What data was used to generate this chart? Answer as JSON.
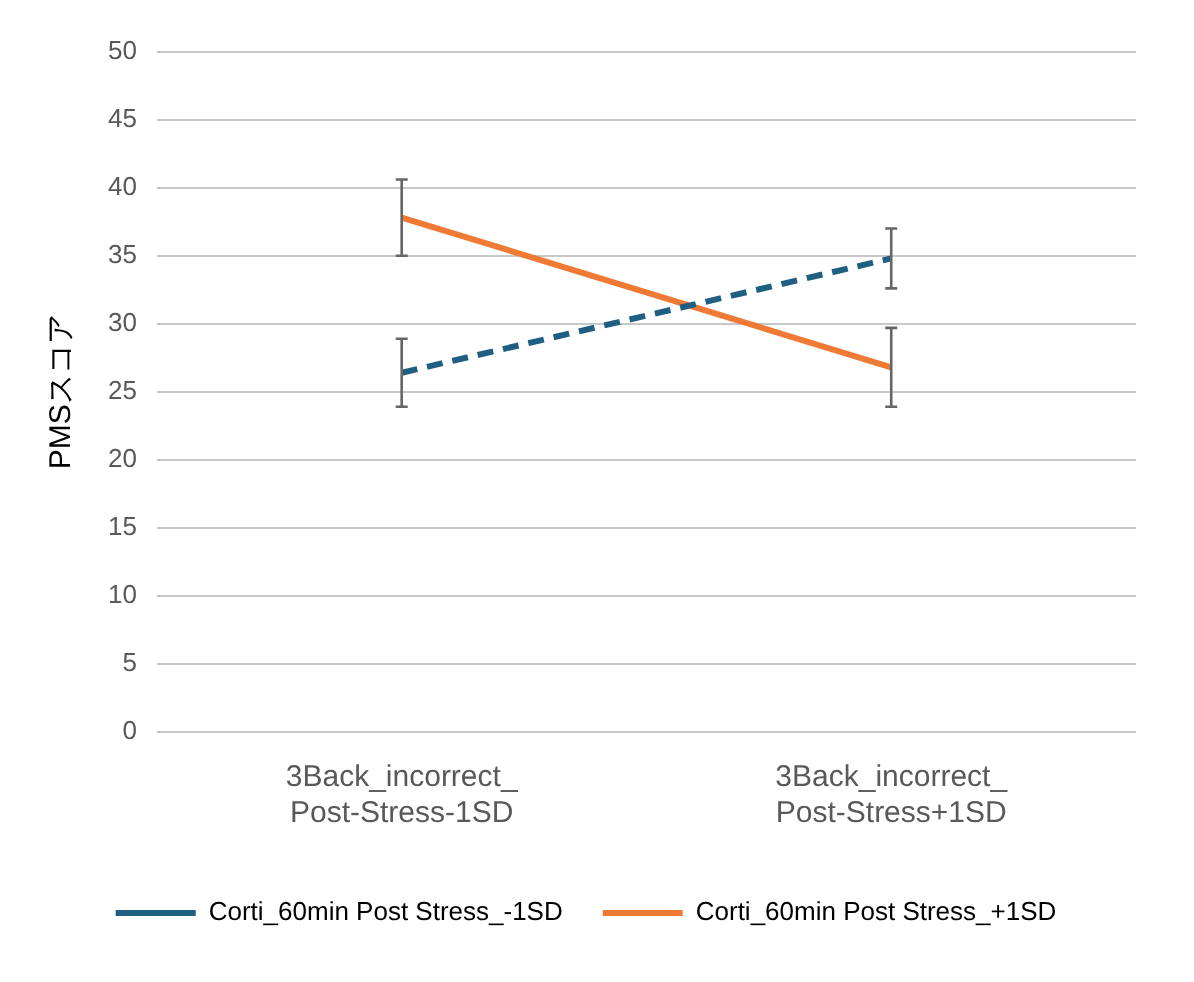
{
  "chart_data": {
    "type": "line",
    "ylabel": "PMSスコア",
    "categories": [
      "3Back_incorrect_Post-Stress-1SD",
      "3Back_incorrect_Post-Stress+1SD"
    ],
    "series": [
      {
        "name": "Corti_60min Post Stress_-1SD",
        "color": "#1f5f82",
        "values": [
          26.4,
          34.8
        ],
        "errors": [
          2.5,
          2.2
        ],
        "line_style": "dashed"
      },
      {
        "name": "Corti_60min Post Stress_+1SD",
        "color": "#ef7a35",
        "values": [
          37.8,
          26.8
        ],
        "errors": [
          2.8,
          2.9
        ],
        "line_style": "solid"
      }
    ],
    "ylim": [
      0,
      50
    ],
    "yticks": [
      0,
      5,
      10,
      15,
      20,
      25,
      30,
      35,
      40,
      45,
      50
    ],
    "grid": "y",
    "legend": "bottom",
    "marker": "none"
  }
}
